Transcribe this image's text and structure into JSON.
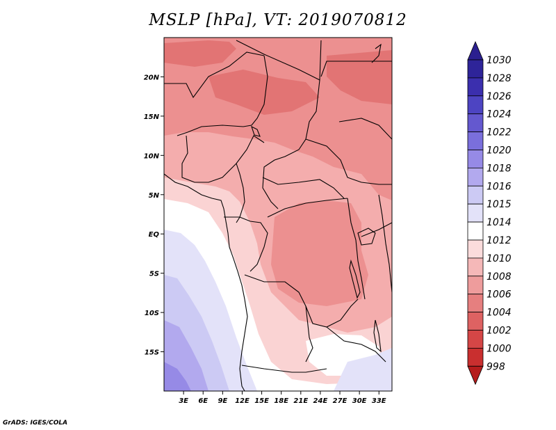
{
  "title": "MSLP [hPa], VT: 2019070812",
  "footer": "GrADS: IGES/COLA",
  "map": {
    "region": "Central Africa",
    "lon_range": [
      0,
      35
    ],
    "lat_range": [
      -20,
      25
    ],
    "lon_ticks": [
      "3E",
      "6E",
      "9E",
      "12E",
      "15E",
      "18E",
      "21E",
      "24E",
      "27E",
      "30E",
      "33E"
    ],
    "lat_ticks": [
      "20N",
      "15N",
      "10N",
      "5N",
      "EQ",
      "5S",
      "10S",
      "15S"
    ]
  },
  "colorbar": {
    "labels": [
      "1030",
      "1028",
      "1026",
      "1024",
      "1022",
      "1020",
      "1018",
      "1016",
      "1015",
      "1014",
      "1012",
      "1010",
      "1008",
      "1006",
      "1004",
      "1002",
      "1000",
      "998"
    ],
    "colors": {
      "top_triangle": "#2b1f8f",
      "bands": [
        "#2e2499",
        "#3b2fae",
        "#4d44c2",
        "#6458cf",
        "#7a6fdc",
        "#968ae6",
        "#b2a9ee",
        "#cccaf4",
        "#e3e2f9",
        "#ffffff",
        "#fbdcdc",
        "#f5b8b8",
        "#ee9c9c",
        "#e67f7f",
        "#de6262",
        "#d54646",
        "#c92f2f"
      ],
      "bottom_triangle": "#b51c1c"
    }
  },
  "palette": {
    "p1006": "#e27474",
    "p1008": "#ec9090",
    "p1010": "#f4adad",
    "p1012": "#fad3d3",
    "p1014": "#ffffff",
    "p1015": "#e3e2f9",
    "p1016": "#cccaf4",
    "p1018": "#b2a9ee",
    "p1020": "#968ae6"
  }
}
